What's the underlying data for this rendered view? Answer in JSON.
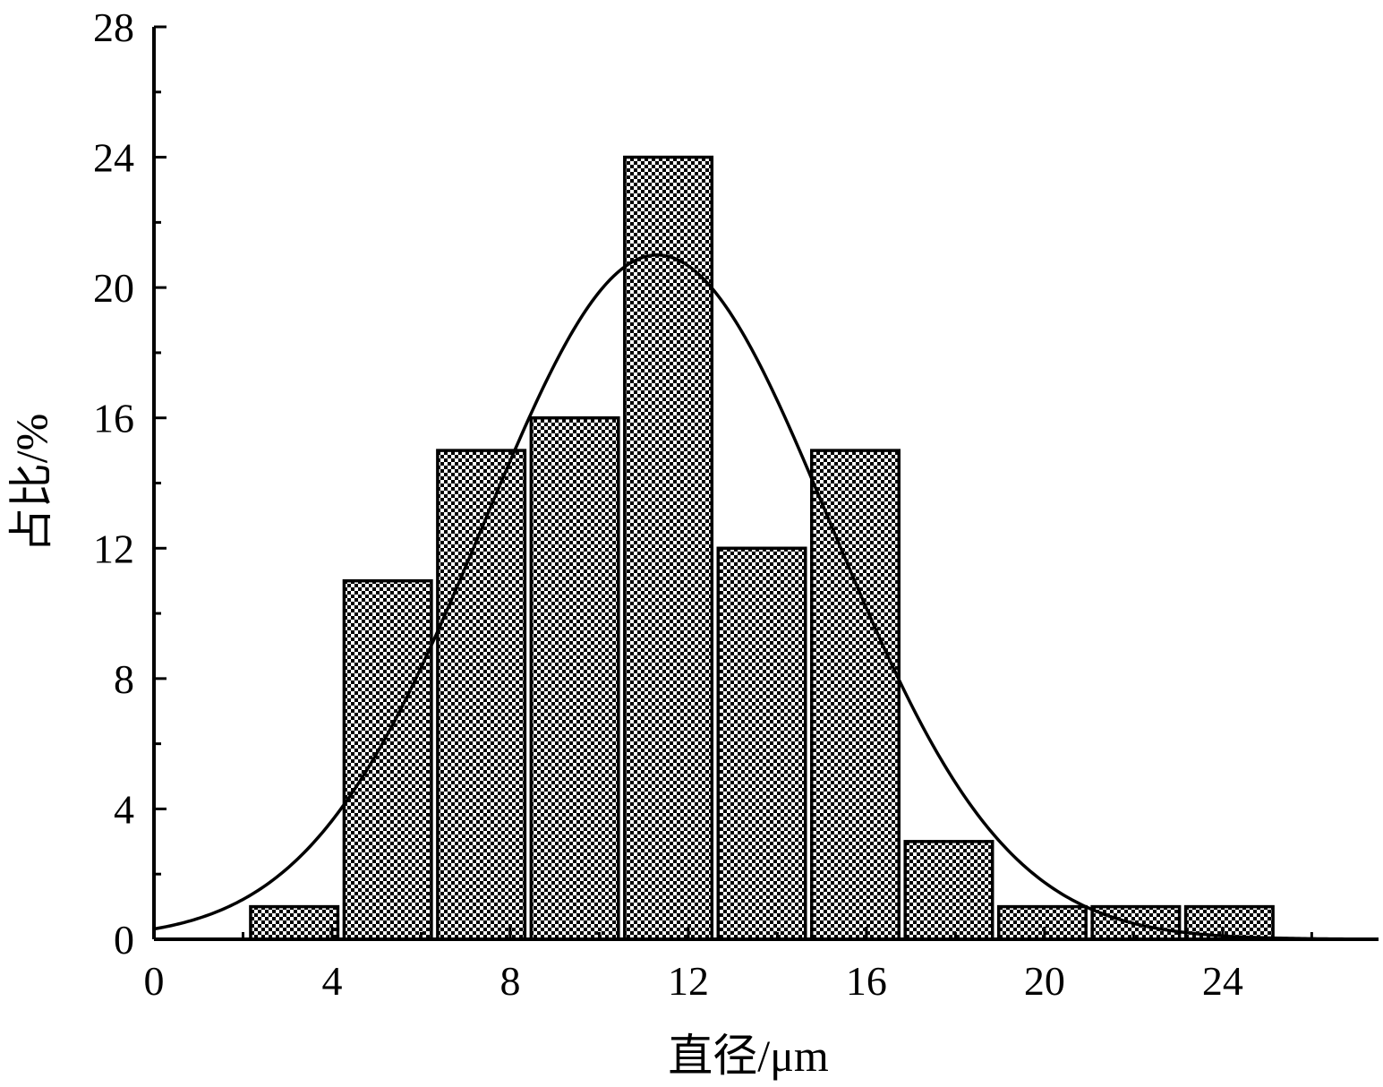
{
  "chart_data": {
    "type": "bar",
    "xlabel": "直径/μm",
    "ylabel": "占比/%",
    "xlim": [
      0,
      27.5
    ],
    "ylim": [
      0,
      28
    ],
    "x_ticks": [
      0,
      4,
      8,
      12,
      16,
      20,
      24
    ],
    "y_ticks": [
      0,
      4,
      8,
      12,
      16,
      20,
      24,
      28
    ],
    "bin_width": 2.1,
    "bars": [
      {
        "center": 3.15,
        "value": 1
      },
      {
        "center": 5.25,
        "value": 11
      },
      {
        "center": 7.35,
        "value": 15
      },
      {
        "center": 9.45,
        "value": 16
      },
      {
        "center": 11.55,
        "value": 24
      },
      {
        "center": 13.65,
        "value": 12
      },
      {
        "center": 15.75,
        "value": 15
      },
      {
        "center": 17.85,
        "value": 3
      },
      {
        "center": 19.95,
        "value": 1
      },
      {
        "center": 22.05,
        "value": 1
      },
      {
        "center": 24.15,
        "value": 1
      }
    ],
    "fit_curve": {
      "type": "gaussian",
      "peak": 21.0,
      "mean": 11.3,
      "sigma": 3.9
    },
    "bar_fill": "checkered",
    "grid": false,
    "legend": "none"
  }
}
